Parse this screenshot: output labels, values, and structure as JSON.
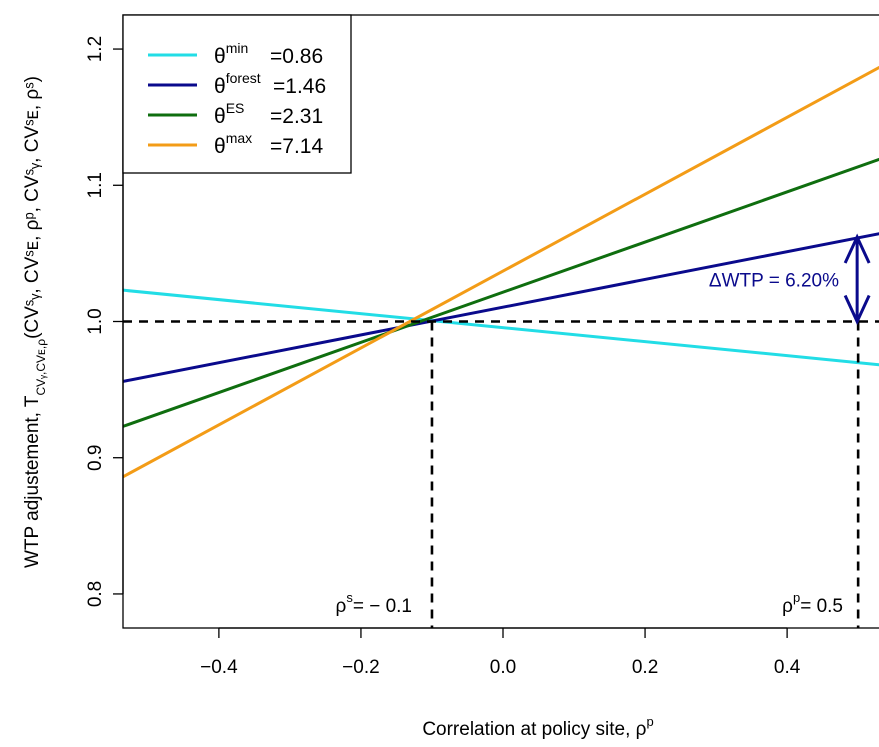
{
  "chart_data": {
    "type": "line",
    "title": "",
    "xlabel": "Correlation at policy site, ρ",
    "xlabel_sup": "p",
    "ylabel": {
      "prefix": "WTP adjustement,   T",
      "sub": "CVᵧ,CVᴇ,ρ",
      "main": "(CVˢᵧ, CVˢᴇ, ρᵖ, CVˢᵧ, CVˢᴇ, ρˢ)"
    },
    "xlim": [
      -0.535,
      0.535
    ],
    "ylim": [
      0.775,
      1.225
    ],
    "xticks": [
      -0.4,
      -0.2,
      0.0,
      0.2,
      0.4
    ],
    "xtick_labels": [
      "−0.4",
      "−0.2",
      "0.0",
      "0.2",
      "0.4"
    ],
    "yticks": [
      0.8,
      0.9,
      1.0,
      1.1,
      1.2
    ],
    "ytick_labels": [
      "0.8",
      "0.9",
      "1.0",
      "1.1",
      "1.2"
    ],
    "series": [
      {
        "name": "min",
        "value_label": "=0.86",
        "color": "#22DDE6",
        "x": [
          -0.535,
          0.535
        ],
        "y": [
          1.023,
          0.968
        ]
      },
      {
        "name": "forest",
        "value_label": "=1.46",
        "color": "#0A0A8C",
        "x": [
          -0.535,
          0.535
        ],
        "y": [
          0.956,
          1.065
        ]
      },
      {
        "name": "ES",
        "value_label": "=2.31",
        "color": "#0F6E0F",
        "x": [
          -0.535,
          0.535
        ],
        "y": [
          0.923,
          1.12
        ]
      },
      {
        "name": "max",
        "value_label": "=7.14",
        "color": "#F39C17",
        "x": [
          -0.535,
          0.535
        ],
        "y": [
          0.886,
          1.188
        ]
      }
    ],
    "legend": {
      "position": "top-left",
      "theta": "θ"
    },
    "reference_lines": {
      "y_equals_one": 1.0,
      "rho_s": -0.1,
      "rho_p": 0.5,
      "rho_s_label": {
        "base": "ρ",
        "sup": "s",
        "text": "= − 0.1"
      },
      "rho_p_label": {
        "base": "ρ",
        "sup": "p",
        "text": "= 0.5"
      }
    },
    "delta_annotation": {
      "text": "ΔWTP = 6.20%",
      "color": "#0A0A8C",
      "x": 0.5,
      "y_from": 1.0,
      "y_to": 1.062
    }
  }
}
